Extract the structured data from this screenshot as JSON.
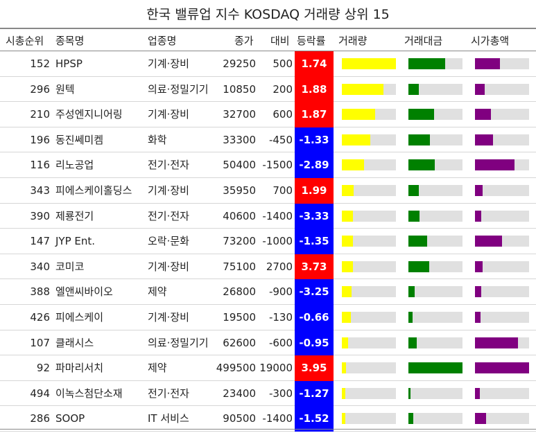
{
  "title": "한국 밸류업 지수 KOSDAQ 거래량 상위 15",
  "headers": {
    "rank": "시총순위",
    "name": "종목명",
    "sector": "업종명",
    "close": "종가",
    "change": "대비",
    "rate": "등락률",
    "volume": "거래량",
    "value": "거래대금",
    "mcap": "시가총액"
  },
  "colors": {
    "up": "#ff0000",
    "down": "#0000ff",
    "volume_bar": "#ffff00",
    "value_bar": "#008000",
    "mcap_bar": "#800080",
    "track": "#e0e0e0"
  },
  "chart_data": {
    "type": "table",
    "note_bars": "bar columns are relative magnitudes (0-1) for 거래량, 거래대금, 시가총액",
    "rows": [
      {
        "rank": "152",
        "name": "HPSP",
        "sector": "기계·장비",
        "close": "29250",
        "change": "500",
        "rate": "1.74",
        "vol": 1.0,
        "val": 0.68,
        "mcap": 0.46
      },
      {
        "rank": "296",
        "name": "원텍",
        "sector": "의료·정밀기기",
        "close": "10850",
        "change": "200",
        "rate": "1.88",
        "vol": 0.77,
        "val": 0.19,
        "mcap": 0.18
      },
      {
        "rank": "210",
        "name": "주성엔지니어링",
        "sector": "기계·장비",
        "close": "32700",
        "change": "600",
        "rate": "1.87",
        "vol": 0.61,
        "val": 0.47,
        "mcap": 0.29
      },
      {
        "rank": "196",
        "name": "동진쎄미켐",
        "sector": "화학",
        "close": "33300",
        "change": "-450",
        "rate": "-1.33",
        "vol": 0.53,
        "val": 0.4,
        "mcap": 0.33
      },
      {
        "rank": "116",
        "name": "리노공업",
        "sector": "전기·전자",
        "close": "50400",
        "change": "-1500",
        "rate": "-2.89",
        "vol": 0.41,
        "val": 0.49,
        "mcap": 0.73
      },
      {
        "rank": "343",
        "name": "피에스케이홀딩스",
        "sector": "기계·장비",
        "close": "35950",
        "change": "700",
        "rate": "1.99",
        "vol": 0.22,
        "val": 0.19,
        "mcap": 0.14
      },
      {
        "rank": "390",
        "name": "제룡전기",
        "sector": "전기·전자",
        "close": "40600",
        "change": "-1400",
        "rate": "-3.33",
        "vol": 0.21,
        "val": 0.2,
        "mcap": 0.12
      },
      {
        "rank": "147",
        "name": "JYP Ent.",
        "sector": "오락·문화",
        "close": "73200",
        "change": "-1000",
        "rate": "-1.35",
        "vol": 0.21,
        "val": 0.35,
        "mcap": 0.5
      },
      {
        "rank": "340",
        "name": "코미코",
        "sector": "기계·장비",
        "close": "75100",
        "change": "2700",
        "rate": "3.73",
        "vol": 0.21,
        "val": 0.38,
        "mcap": 0.14
      },
      {
        "rank": "388",
        "name": "엘앤씨바이오",
        "sector": "제약",
        "close": "26800",
        "change": "-900",
        "rate": "-3.25",
        "vol": 0.18,
        "val": 0.12,
        "mcap": 0.12
      },
      {
        "rank": "426",
        "name": "피에스케이",
        "sector": "기계·장비",
        "close": "19500",
        "change": "-130",
        "rate": "-0.66",
        "vol": 0.17,
        "val": 0.08,
        "mcap": 0.1
      },
      {
        "rank": "107",
        "name": "클래시스",
        "sector": "의료·정밀기기",
        "close": "62600",
        "change": "-600",
        "rate": "-0.95",
        "vol": 0.11,
        "val": 0.16,
        "mcap": 0.79
      },
      {
        "rank": "92",
        "name": "파마리서치",
        "sector": "제약",
        "close": "499500",
        "change": "19000",
        "rate": "3.95",
        "vol": 0.08,
        "val": 1.0,
        "mcap": 1.0
      },
      {
        "rank": "494",
        "name": "이녹스첨단소재",
        "sector": "전기·전자",
        "close": "23400",
        "change": "-300",
        "rate": "-1.27",
        "vol": 0.06,
        "val": 0.04,
        "mcap": 0.09
      },
      {
        "rank": "286",
        "name": "SOOP",
        "sector": "IT 서비스",
        "close": "90500",
        "change": "-1400",
        "rate": "-1.52",
        "vol": 0.06,
        "val": 0.09,
        "mcap": 0.2
      }
    ]
  }
}
